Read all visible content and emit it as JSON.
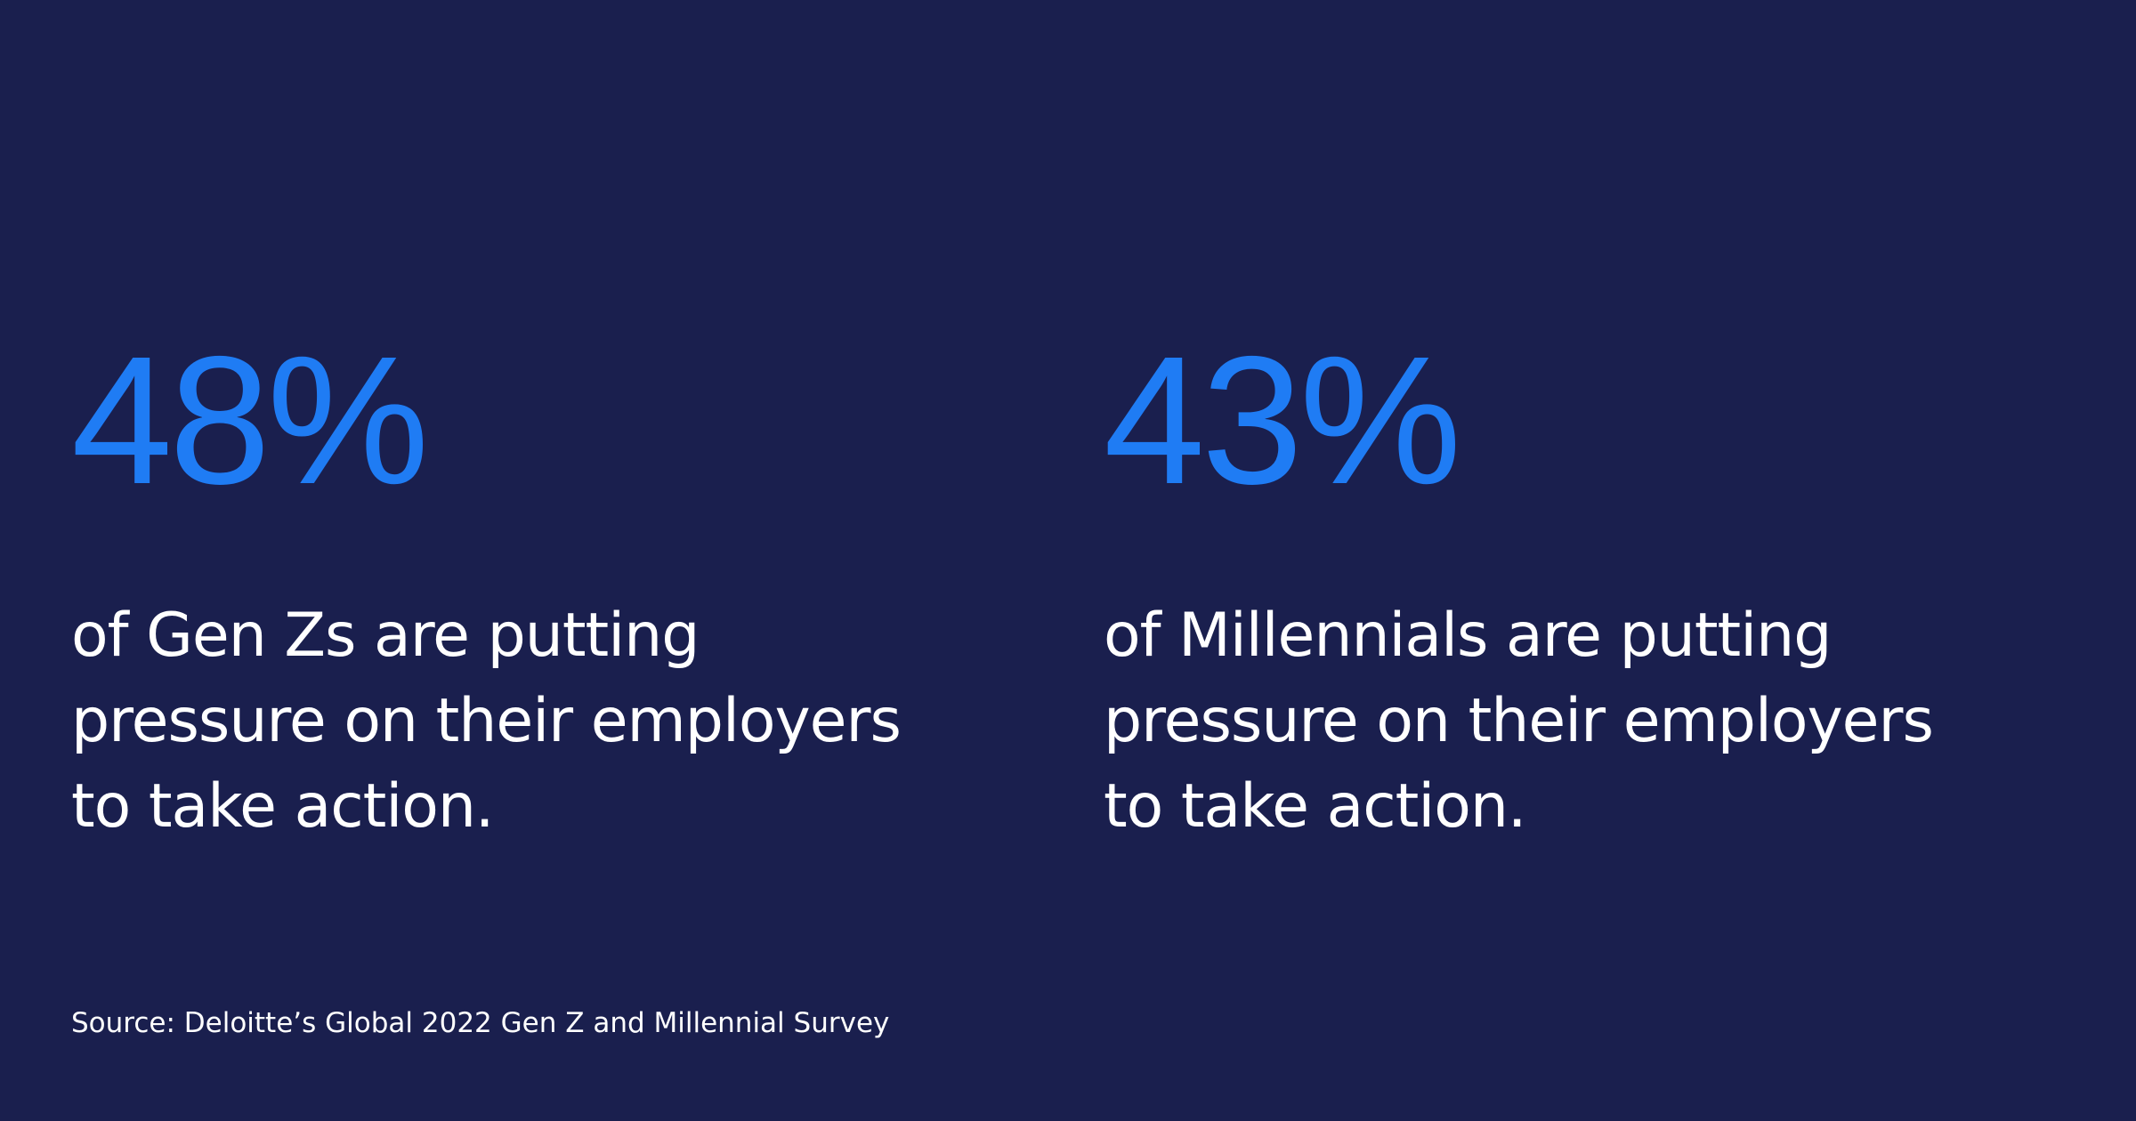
{
  "stats": [
    {
      "value": "48%",
      "description": [
        "of Gen Zs are putting",
        "pressure on their employers",
        "to take action."
      ]
    },
    {
      "value": "43%",
      "description": [
        "of Millennials are putting",
        "pressure on their employers",
        "to take action."
      ]
    }
  ],
  "source": "Source: Deloitte’s Global 2022 Gen Z and Millennial Survey"
}
